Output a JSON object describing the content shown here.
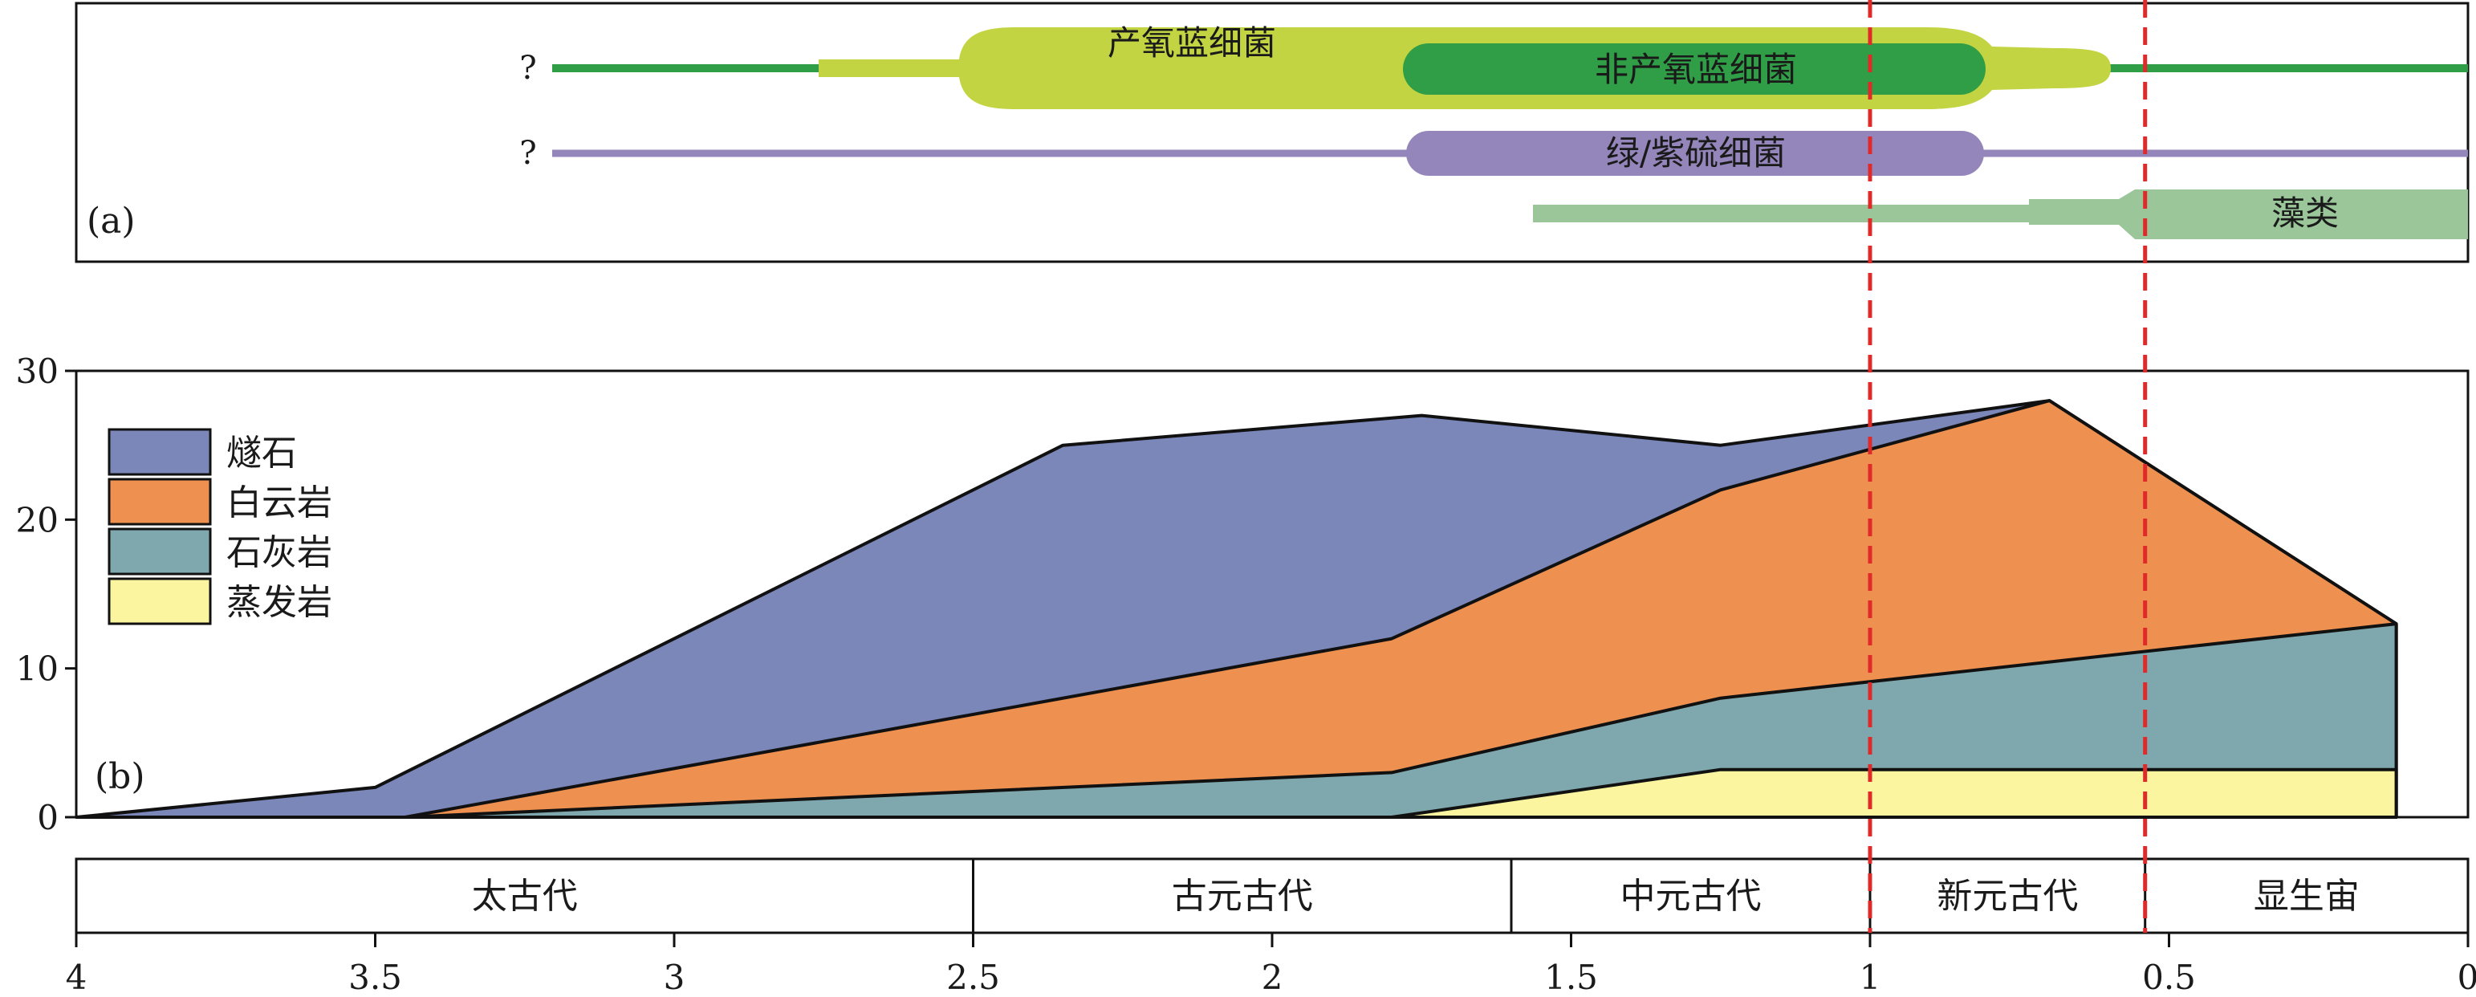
{
  "panel_a": {
    "label": "(a)",
    "question_mark": "?",
    "lineages": [
      {
        "name": "产氧蓝细菌",
        "color": "#c3d443"
      },
      {
        "name": "非产氧蓝细菌",
        "color": "#2f9e46"
      },
      {
        "name": "绿/紫硫细菌",
        "color": "#9486bb"
      },
      {
        "name": "藻类",
        "color": "#9bc69a"
      }
    ]
  },
  "chart_data": {
    "type": "area",
    "panel_label": "(b)",
    "xlim": [
      4,
      0
    ],
    "ylim": [
      0,
      30
    ],
    "x_ticks": [
      "4",
      "3.5",
      "3",
      "2.5",
      "2",
      "1.5",
      "1",
      "0.5",
      "0"
    ],
    "x_tick_values": [
      4,
      3.5,
      3,
      2.5,
      2,
      1.5,
      1,
      0.5,
      0
    ],
    "y_ticks": [
      "0",
      "10",
      "20",
      "30"
    ],
    "y_tick_values": [
      0,
      10,
      20,
      30
    ],
    "stack_order_bottom_to_top": [
      "蒸发岩",
      "石灰岩",
      "白云岩",
      "燧石"
    ],
    "series": [
      {
        "name": "燧石",
        "color": "#7b86b9",
        "top_x": [
          4,
          3.5,
          2.35,
          1.75,
          1.25,
          0.7,
          0.12
        ],
        "top_y": [
          0,
          2,
          25,
          27,
          25,
          28,
          13
        ]
      },
      {
        "name": "白云岩",
        "color": "#ed9050",
        "top_x": [
          3.45,
          1.8,
          1.25,
          0.7,
          0.12
        ],
        "top_y": [
          0,
          12,
          22,
          28,
          13
        ]
      },
      {
        "name": "石灰岩",
        "color": "#7ea8ae",
        "top_x": [
          3.45,
          1.8,
          1.25,
          0.12
        ],
        "top_y": [
          0,
          3,
          8,
          13
        ]
      },
      {
        "name": "蒸发岩",
        "color": "#fbf5a0",
        "top_x": [
          1.8,
          1.25,
          0.12
        ],
        "top_y": [
          0,
          3.2,
          3.2
        ]
      }
    ],
    "legend_position": "top-left",
    "reference_lines_x": [
      1.0,
      0.54
    ],
    "reference_line_color": "#e02a2a",
    "eras": [
      {
        "name": "太古代",
        "from": 4,
        "to": 2.5
      },
      {
        "name": "古元古代",
        "from": 2.5,
        "to": 1.6
      },
      {
        "name": "中元古代",
        "from": 1.6,
        "to": 1.0
      },
      {
        "name": "新元古代",
        "from": 1.0,
        "to": 0.54
      },
      {
        "name": "显生宙",
        "from": 0.54,
        "to": 0
      }
    ]
  }
}
